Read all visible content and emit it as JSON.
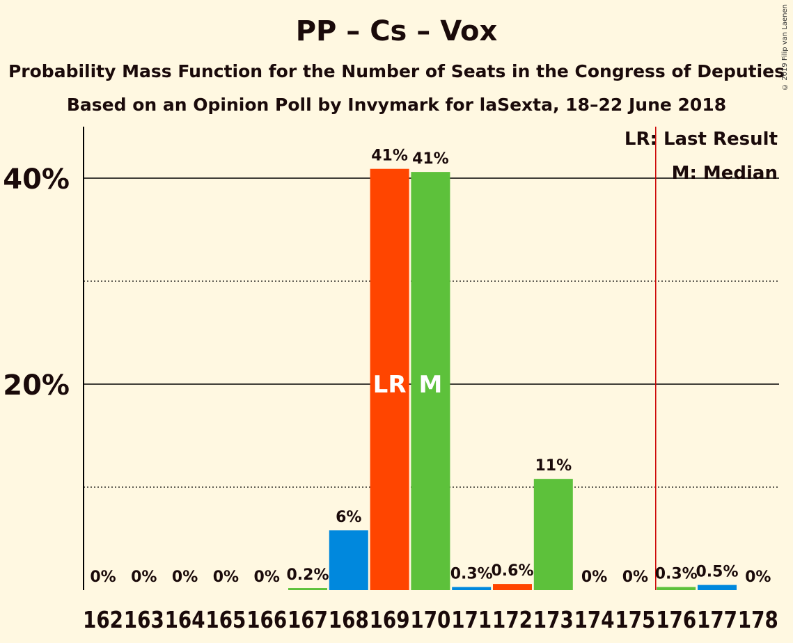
{
  "title": "PP – Cs – Vox",
  "subtitle1": "Probability Mass Function for the Number of Seats in the Congress of Deputies",
  "subtitle2": "Based on an Opinion Poll by Invymark for laSexta, 18–22 June 2018",
  "copyright": "© 2019 Filip van Laenen",
  "colors": {
    "background": "#FFF8E1",
    "blue": "#0088DD",
    "orange": "#FF4500",
    "green": "#5DC13B",
    "lastResultLine": "#CC0000"
  },
  "chart_data": {
    "type": "bar",
    "categories": [
      "162",
      "163",
      "164",
      "165",
      "166",
      "167",
      "168",
      "169",
      "170",
      "171",
      "172",
      "173",
      "174",
      "175",
      "176",
      "177",
      "178"
    ],
    "values": [
      0,
      0,
      0,
      0,
      0,
      0.2,
      5.8,
      40.9,
      40.6,
      0.3,
      0.6,
      10.8,
      0,
      0,
      0.3,
      0.5,
      0
    ],
    "value_labels": [
      "0%",
      "0%",
      "0%",
      "0%",
      "0%",
      "0.2%",
      "6%",
      "41%",
      "41%",
      "0.3%",
      "0.6%",
      "11%",
      "0%",
      "0%",
      "0.3%",
      "0.5%",
      "0%"
    ],
    "bar_colors": [
      "blue",
      "orange",
      "green",
      "blue",
      "orange",
      "green",
      "blue",
      "orange",
      "green",
      "blue",
      "orange",
      "green",
      "blue",
      "orange",
      "green",
      "blue",
      "orange"
    ],
    "ylim": [
      0,
      45
    ],
    "y_ticks": [
      20,
      40
    ],
    "y_tick_labels": [
      "20%",
      "40%"
    ],
    "y_minor_gridlines": [
      10,
      30
    ],
    "last_result": {
      "category": "169",
      "marker": "LR"
    },
    "median": {
      "category": "170",
      "marker": "M"
    },
    "majority_line_after": "175",
    "legend": [
      "LR: Last Result",
      "M: Median"
    ],
    "legend_position": "top-right"
  }
}
